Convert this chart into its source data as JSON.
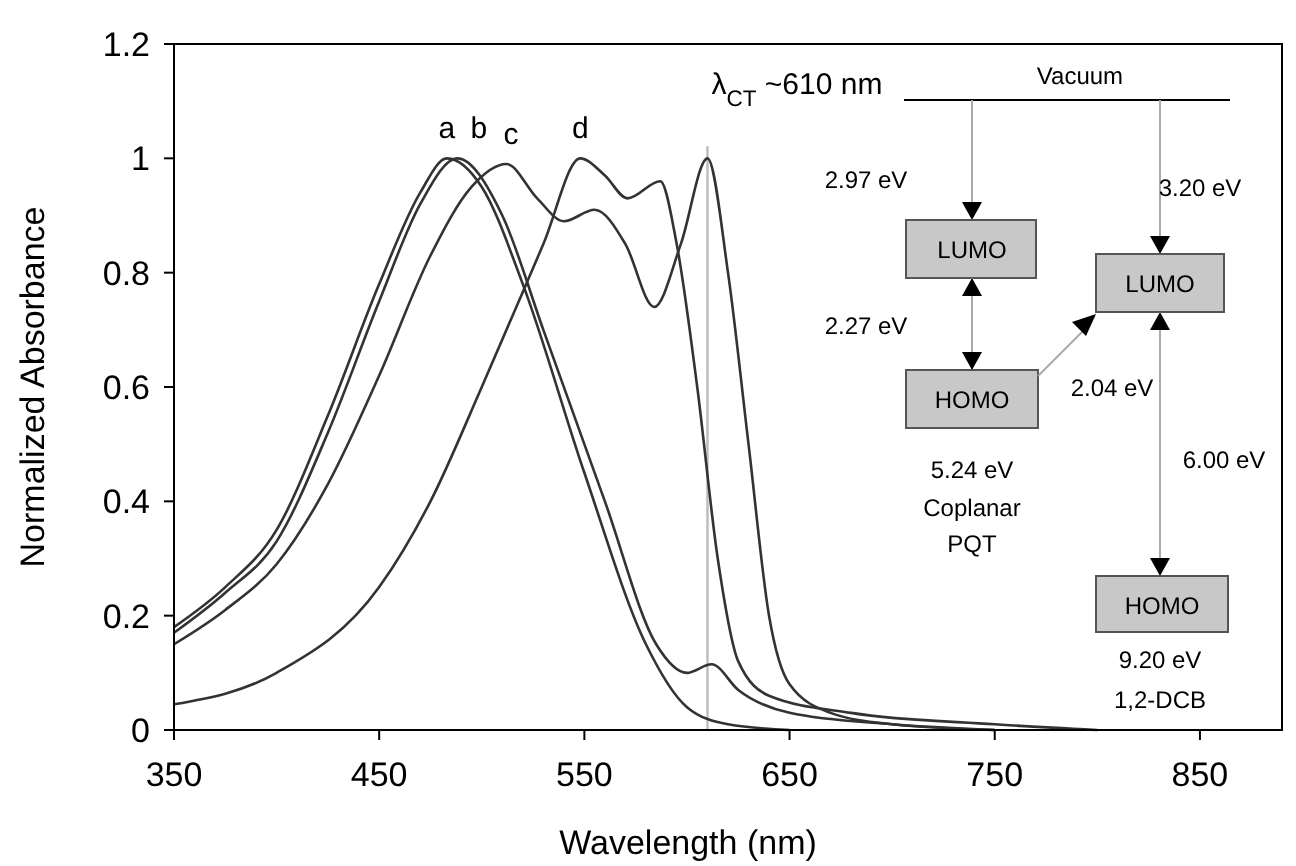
{
  "chart_data": {
    "type": "line",
    "xlabel": "Wavelength (nm)",
    "ylabel": "Normalized Absorbance",
    "xlim": [
      350,
      890
    ],
    "ylim": [
      0,
      1.2
    ],
    "xticks": [
      350,
      450,
      550,
      650,
      750,
      850
    ],
    "yticks": [
      0,
      0.2,
      0.4,
      0.6,
      0.8,
      1,
      1.2
    ],
    "series": [
      {
        "name": "a",
        "color": "#333333",
        "x": [
          350,
          375,
          400,
          425,
          450,
          470,
          483,
          500,
          520,
          550,
          580,
          600,
          620,
          650
        ],
        "values": [
          0.18,
          0.25,
          0.35,
          0.55,
          0.78,
          0.94,
          1.0,
          0.95,
          0.78,
          0.45,
          0.15,
          0.04,
          0.01,
          0
        ]
      },
      {
        "name": "b",
        "color": "#333333",
        "x": [
          350,
          375,
          400,
          425,
          450,
          470,
          488,
          510,
          530,
          560,
          585,
          600,
          612,
          625,
          650,
          700,
          750
        ],
        "values": [
          0.17,
          0.24,
          0.33,
          0.52,
          0.75,
          0.92,
          1.0,
          0.9,
          0.7,
          0.4,
          0.15,
          0.1,
          0.115,
          0.07,
          0.03,
          0.01,
          0
        ]
      },
      {
        "name": "c",
        "color": "#333333",
        "x": [
          350,
          375,
          400,
          425,
          450,
          475,
          495,
          512,
          527,
          540,
          555,
          570,
          584,
          597,
          610,
          620,
          630,
          640,
          650,
          670,
          700,
          750
        ],
        "values": [
          0.15,
          0.21,
          0.29,
          0.43,
          0.62,
          0.83,
          0.95,
          0.99,
          0.93,
          0.89,
          0.91,
          0.85,
          0.74,
          0.85,
          1.0,
          0.8,
          0.5,
          0.2,
          0.08,
          0.03,
          0.01,
          0
        ]
      },
      {
        "name": "d",
        "color": "#333333",
        "x": [
          350,
          400,
          450,
          475,
          500,
          530,
          548,
          560,
          571,
          587,
          595,
          605,
          615,
          625,
          640,
          680,
          750,
          800
        ],
        "values": [
          0.045,
          0.1,
          0.25,
          0.4,
          0.6,
          0.85,
          1.0,
          0.97,
          0.93,
          0.96,
          0.85,
          0.6,
          0.3,
          0.12,
          0.06,
          0.03,
          0.01,
          0
        ]
      }
    ],
    "ref_lines": [
      {
        "axis": "x",
        "value": 610,
        "label": "λ$_{CT}$ ~610 nm",
        "color": "#bbbbbb"
      }
    ],
    "annotations": [
      "Vacuum",
      "2.97 eV",
      "3.20 eV",
      "LUMO",
      "LUMO",
      "2.27 eV",
      "HOMO",
      "2.04 eV",
      "5.24 eV",
      "Coplanar",
      "PQT",
      "6.00 eV",
      "HOMO",
      "9.20 eV",
      "1,2-DCB"
    ]
  }
}
